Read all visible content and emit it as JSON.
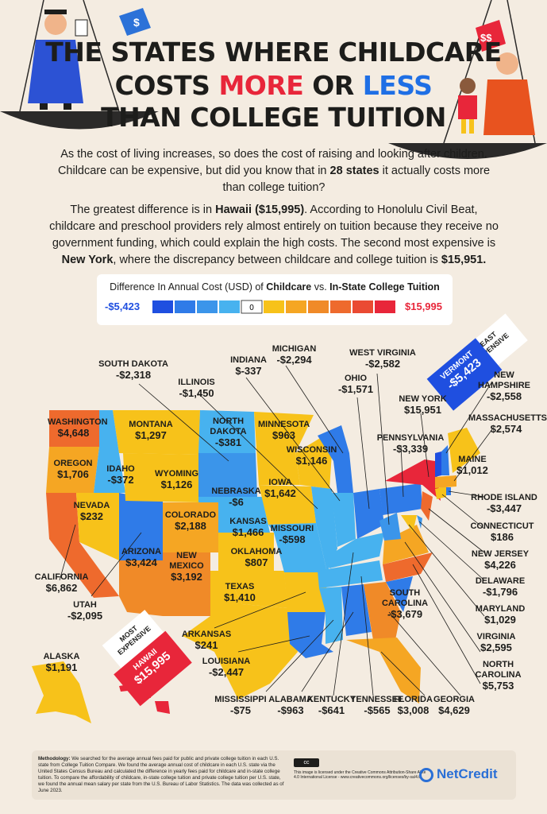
{
  "title": {
    "line1": "THE STATES WHERE CHILDCARE",
    "line2_a": "COSTS ",
    "line2_b": "MORE",
    "line2_c": " OR ",
    "line2_d": "LESS",
    "line3": "THAN COLLEGE TUITION"
  },
  "intro": {
    "p1_a": "As the cost of living increases, so does the cost of raising and looking after children. Childcare can be expensive, but did you know that in ",
    "p1_b": "28 states",
    "p1_c": " it actually costs more than college tuition?",
    "p2_a": "The greatest difference is in ",
    "p2_b": "Hawaii ($15,995)",
    "p2_c": ". According to Honolulu Civil Beat, childcare and preschool providers rely almost entirely on tuition because they receive no government funding, which could explain the high costs. The second most expensive is ",
    "p2_d": "New York",
    "p2_e": ", where the discrepancy between childcare and college tuition is ",
    "p2_f": "$15,951."
  },
  "legend": {
    "title_a": "Difference In Annual Cost (USD) of ",
    "title_b": "Childcare",
    "title_c": " vs. ",
    "title_d": "In-State College Tuition",
    "min": "-$5,423",
    "zero": "0",
    "max": "$15,995",
    "colors": [
      "#1f4fe0",
      "#2f7be8",
      "#3b95ea",
      "#47b2ef",
      "#ffffff",
      "#f7c21a",
      "#f5a623",
      "#f08a28",
      "#ee6a2d",
      "#ea4a33",
      "#e8263a"
    ]
  },
  "badges": {
    "least_label": "LEAST EXPENSIVE",
    "least_state": "VERMONT",
    "least_value": "-$5,423",
    "most_label": "MOST EXPENSIVE",
    "most_state": "HAWAII",
    "most_value": "$15,995"
  },
  "states": [
    {
      "id": "south-dakota",
      "name": "SOUTH DAKOTA",
      "value": "-$2,318"
    },
    {
      "id": "indiana",
      "name": "INDIANA",
      "value": "$-337"
    },
    {
      "id": "michigan",
      "name": "MICHIGAN",
      "value": "-$2,294"
    },
    {
      "id": "west-virginia",
      "name": "WEST VIRGINIA",
      "value": "-$2,582"
    },
    {
      "id": "illinois",
      "name": "ILLINOIS",
      "value": "-$1,450"
    },
    {
      "id": "ohio",
      "name": "OHIO",
      "value": "-$1,571"
    },
    {
      "id": "new-hampshire",
      "name": "NEW HAMPSHIRE",
      "value": "-$2,558"
    },
    {
      "id": "new-york",
      "name": "NEW YORK",
      "value": "$15,951"
    },
    {
      "id": "massachusetts",
      "name": "MASSACHUSETTS",
      "value": "$2,574"
    },
    {
      "id": "pennsylvania",
      "name": "PENNSYLVANIA",
      "value": "-$3,339"
    },
    {
      "id": "washington",
      "name": "WASHINGTON",
      "value": "$4,648"
    },
    {
      "id": "montana",
      "name": "MONTANA",
      "value": "$1,297"
    },
    {
      "id": "north-dakota",
      "name": "NORTH DAKOTA",
      "value": "-$381"
    },
    {
      "id": "minnesota",
      "name": "MINNESOTA",
      "value": "$963"
    },
    {
      "id": "wisconsin",
      "name": "WISCONSIN",
      "value": "$1,146"
    },
    {
      "id": "maine",
      "name": "MAINE",
      "value": "$1,012"
    },
    {
      "id": "oregon",
      "name": "OREGON",
      "value": "$1,706"
    },
    {
      "id": "idaho",
      "name": "IDAHO",
      "value": "-$372"
    },
    {
      "id": "wyoming",
      "name": "WYOMING",
      "value": "$1,126"
    },
    {
      "id": "nebraska",
      "name": "NEBRASKA",
      "value": "-$6"
    },
    {
      "id": "iowa",
      "name": "IOWA",
      "value": "$1,642"
    },
    {
      "id": "rhode-island",
      "name": "RHODE ISLAND",
      "value": "-$3,447"
    },
    {
      "id": "nevada",
      "name": "NEVADA",
      "value": "$232"
    },
    {
      "id": "colorado",
      "name": "COLORADO",
      "value": "$2,188"
    },
    {
      "id": "kansas",
      "name": "KANSAS",
      "value": "$1,466"
    },
    {
      "id": "missouri",
      "name": "MISSOURI",
      "value": "-$598"
    },
    {
      "id": "connecticut",
      "name": "CONNECTICUT",
      "value": "$186"
    },
    {
      "id": "arizona",
      "name": "ARIZONA",
      "value": "$3,424"
    },
    {
      "id": "new-mexico",
      "name": "NEW MEXICO",
      "value": "$3,192"
    },
    {
      "id": "oklahoma",
      "name": "OKLAHOMA",
      "value": "$807"
    },
    {
      "id": "new-jersey",
      "name": "NEW JERSEY",
      "value": "$4,226"
    },
    {
      "id": "california",
      "name": "CALIFORNIA",
      "value": "$6,862"
    },
    {
      "id": "texas",
      "name": "TEXAS",
      "value": "$1,410"
    },
    {
      "id": "delaware",
      "name": "DELAWARE",
      "value": "-$1,796"
    },
    {
      "id": "south-carolina",
      "name": "SOUTH CAROLINA",
      "value": "-$3,679"
    },
    {
      "id": "utah",
      "name": "UTAH",
      "value": "-$2,095"
    },
    {
      "id": "maryland",
      "name": "MARYLAND",
      "value": "$1,029"
    },
    {
      "id": "arkansas",
      "name": "ARKANSAS",
      "value": "$241"
    },
    {
      "id": "virginia",
      "name": "VIRGINIA",
      "value": "$2,595"
    },
    {
      "id": "alaska",
      "name": "ALASKA",
      "value": "$1,191"
    },
    {
      "id": "louisiana",
      "name": "LOUISIANA",
      "value": "-$2,447"
    },
    {
      "id": "north-carolina",
      "name": "NORTH CAROLINA",
      "value": "$5,753"
    },
    {
      "id": "mississippi",
      "name": "MISSISSIPPI",
      "value": "-$75"
    },
    {
      "id": "alabama",
      "name": "ALABAMA",
      "value": "-$963"
    },
    {
      "id": "kentucky",
      "name": "KENTUCKY",
      "value": "-$641"
    },
    {
      "id": "tennessee",
      "name": "TENNESSEE",
      "value": "-$565"
    },
    {
      "id": "florida",
      "name": "FLORIDA",
      "value": "$3,008"
    },
    {
      "id": "georgia",
      "name": "GEORGIA",
      "value": "$4,629"
    }
  ],
  "footer": {
    "meth_label": "Methodology:",
    "meth_text": " We searched for the average annual fees paid for public and private college tuition in each U.S. state from College Tuition Compare. We found the average annual cost of childcare in each U.S. state via the United States Census Bureau and calculated the difference in yearly fees paid for childcare and in-state college tuition. To compare the affordability of childcare, in-state college tuition and private college tuition per U.S. state, we found the annual mean salary per state from the U.S. Bureau of Labor Statistics. The data was collected as of June 2023.",
    "license": "This image is licensed under the Creative Commons Attribution-Share Alike 4.0 International License - www.creativecommons.org/licenses/by-sa/4.0",
    "brand": "NetCredit"
  }
}
